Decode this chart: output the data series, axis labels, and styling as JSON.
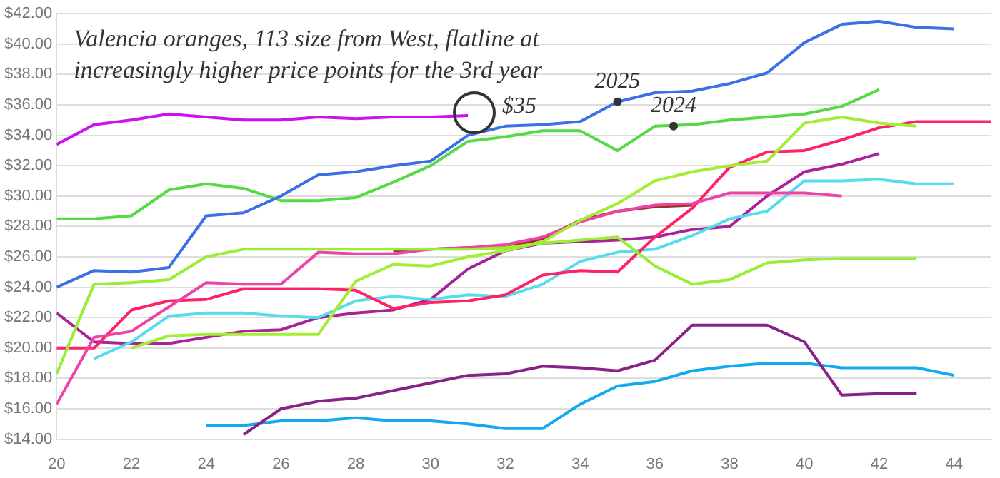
{
  "chart_data": {
    "type": "line",
    "title": "Valencia oranges, 113 size from West, flatline at increasingly higher price points for the 3rd year",
    "xlim": [
      20,
      45
    ],
    "xticks": [
      20,
      22,
      24,
      26,
      28,
      30,
      32,
      34,
      36,
      38,
      40,
      42,
      44
    ],
    "ylim": [
      14,
      42
    ],
    "yticks": [
      {
        "value": 14,
        "label": "$14.00"
      },
      {
        "value": 16,
        "label": "$16.00"
      },
      {
        "value": 18,
        "label": "$18.00"
      },
      {
        "value": 20,
        "label": "$20.00"
      },
      {
        "value": 22,
        "label": "$22.00"
      },
      {
        "value": 24,
        "label": "$24.00"
      },
      {
        "value": 26,
        "label": "$26.00"
      },
      {
        "value": 28,
        "label": "$28.00"
      },
      {
        "value": 30,
        "label": "$30.00"
      },
      {
        "value": 32,
        "label": "$32.00"
      },
      {
        "value": 34,
        "label": "$34.00"
      },
      {
        "value": 36,
        "label": "$36.00"
      },
      {
        "value": 38,
        "label": "$38.00"
      },
      {
        "value": 40,
        "label": "$40.00"
      },
      {
        "value": 42,
        "label": "$42.00"
      }
    ],
    "grid": "y",
    "legend": false,
    "series": [
      {
        "color": "#cc11ee",
        "x": [
          20,
          21,
          22,
          23,
          24,
          25,
          26,
          27,
          28,
          29,
          30,
          31
        ],
        "values": [
          33.4,
          34.7,
          35.0,
          35.4,
          35.2,
          35.0,
          35.0,
          35.2,
          35.1,
          35.2,
          35.2,
          35.3
        ]
      },
      {
        "color": "#3d6fe6",
        "x": [
          20,
          21,
          22,
          23,
          24,
          25,
          26,
          27,
          28,
          29,
          30,
          31,
          32,
          33,
          34,
          35,
          36,
          37,
          38,
          39,
          40,
          41,
          42,
          43,
          44
        ],
        "values": [
          24.0,
          25.1,
          25.0,
          25.3,
          28.7,
          28.9,
          30.0,
          31.4,
          31.6,
          32.0,
          32.3,
          34.0,
          34.6,
          34.7,
          34.9,
          36.2,
          36.8,
          36.9,
          37.4,
          38.1,
          40.1,
          41.3,
          41.5,
          41.1,
          41.0
        ]
      },
      {
        "color": "#55d944",
        "x": [
          20,
          21,
          22,
          23,
          24,
          25,
          26,
          27,
          28,
          29,
          30,
          31,
          32,
          33,
          34,
          35,
          36,
          37,
          38,
          39,
          40,
          41,
          42
        ],
        "values": [
          28.5,
          28.5,
          28.7,
          30.4,
          30.8,
          30.5,
          29.7,
          29.7,
          29.9,
          30.9,
          32.0,
          33.6,
          33.9,
          34.3,
          34.3,
          33.0,
          34.6,
          34.7,
          35.0,
          35.2,
          35.4,
          35.9,
          37.0
        ]
      },
      {
        "color": "#99ee33",
        "x": [
          20,
          21,
          22,
          23,
          24,
          25,
          26,
          27,
          28,
          29,
          30,
          31,
          32,
          33,
          34,
          35,
          36,
          37,
          38,
          39,
          40,
          41,
          42,
          43
        ],
        "values": [
          18.3,
          24.2,
          24.3,
          24.5,
          26.0,
          26.5,
          26.5,
          26.5,
          26.5,
          26.5,
          26.5,
          26.5,
          26.6,
          26.9,
          27.1,
          27.3,
          25.4,
          24.2,
          24.5,
          25.6,
          25.8,
          25.9,
          25.9,
          25.9
        ]
      },
      {
        "color": "#a3ee33",
        "x": [
          22,
          23,
          24,
          25,
          26,
          27,
          28,
          29,
          30,
          31,
          32,
          33,
          34,
          35,
          36,
          37,
          38,
          39,
          40,
          41,
          42,
          43
        ],
        "values": [
          20.0,
          20.8,
          20.9,
          20.9,
          20.9,
          20.9,
          24.4,
          25.5,
          25.4,
          26.0,
          26.4,
          27.0,
          28.4,
          29.5,
          31.0,
          31.6,
          32.0,
          32.3,
          34.8,
          35.2,
          34.8,
          34.6
        ]
      },
      {
        "color": "#ee44aa",
        "x": [
          20,
          21,
          22,
          23,
          24,
          25,
          26,
          27,
          28,
          29,
          30,
          31,
          32,
          33,
          34,
          35,
          36,
          37,
          38,
          39,
          40,
          41
        ],
        "values": [
          16.3,
          20.7,
          21.1,
          22.7,
          24.3,
          24.2,
          24.2,
          26.3,
          26.2,
          26.2,
          26.5,
          26.6,
          26.8,
          27.3,
          28.3,
          29.0,
          29.4,
          29.5,
          30.2,
          30.2,
          30.2,
          30.0
        ]
      },
      {
        "color": "#993322",
        "x": [
          29,
          30,
          31,
          32,
          33,
          34,
          35,
          36,
          37
        ],
        "values": [
          26.4,
          26.5,
          26.6,
          26.6,
          27.2,
          28.4,
          29.0,
          29.3,
          29.4
        ]
      },
      {
        "color": "#ff2266",
        "x": [
          20,
          21,
          22,
          23,
          24,
          25,
          26,
          27,
          28,
          29,
          30,
          31,
          32,
          33,
          34,
          35,
          36,
          37,
          38,
          39,
          40,
          41,
          42,
          43,
          44,
          45
        ],
        "values": [
          20.0,
          20.0,
          22.5,
          23.1,
          23.2,
          23.9,
          23.9,
          23.9,
          23.8,
          22.6,
          23.0,
          23.1,
          23.5,
          24.8,
          25.1,
          25.0,
          27.3,
          29.2,
          31.9,
          32.9,
          33.0,
          33.7,
          34.5,
          34.9,
          34.9,
          34.9
        ]
      },
      {
        "color": "#55ddee",
        "x": [
          21,
          22,
          23,
          24,
          25,
          26,
          27,
          28,
          29,
          30,
          31,
          32,
          33,
          34,
          35,
          36,
          37,
          38,
          39,
          40,
          41,
          42,
          43,
          44
        ],
        "values": [
          19.3,
          20.4,
          22.1,
          22.3,
          22.3,
          22.1,
          22.0,
          23.1,
          23.4,
          23.2,
          23.5,
          23.4,
          24.2,
          25.7,
          26.3,
          26.5,
          27.4,
          28.5,
          29.0,
          31.0,
          31.0,
          31.1,
          30.8,
          30.8
        ]
      },
      {
        "color": "#aa2299",
        "x": [
          20,
          21,
          22,
          23,
          24,
          25,
          26,
          27,
          28,
          29,
          30,
          31,
          32,
          33,
          34,
          35,
          36,
          37,
          38,
          39,
          40,
          41,
          42
        ],
        "values": [
          22.3,
          20.4,
          20.3,
          20.3,
          20.7,
          21.1,
          21.2,
          22.0,
          22.3,
          22.5,
          23.2,
          25.2,
          26.4,
          26.9,
          27.0,
          27.1,
          27.3,
          27.8,
          28.0,
          30.0,
          31.6,
          32.1,
          32.8
        ]
      },
      {
        "color": "#882288",
        "x": [
          25,
          26,
          27,
          28,
          29,
          30,
          31,
          32,
          33,
          34,
          35,
          36,
          37,
          38,
          39,
          40,
          41,
          42,
          43
        ],
        "values": [
          14.3,
          16.0,
          16.5,
          16.7,
          17.2,
          17.7,
          18.2,
          18.3,
          18.8,
          18.7,
          18.5,
          19.2,
          21.5,
          21.5,
          21.5,
          20.4,
          16.9,
          17.0,
          17.0
        ]
      },
      {
        "color": "#11aaee",
        "x": [
          24,
          25,
          26,
          27,
          28,
          29,
          30,
          31,
          32,
          33,
          34,
          35,
          36,
          37,
          38,
          39,
          40,
          41,
          42,
          43,
          44
        ],
        "values": [
          14.9,
          14.9,
          15.2,
          15.2,
          15.4,
          15.2,
          15.2,
          15.0,
          14.7,
          14.7,
          16.3,
          17.5,
          17.8,
          18.5,
          18.8,
          19.0,
          19.0,
          18.7,
          18.7,
          18.7,
          18.2
        ]
      }
    ],
    "annotations": [
      {
        "text": "$35",
        "x": 31,
        "y": 35.3
      },
      {
        "text": "2025",
        "x": 35,
        "y": 36.2
      },
      {
        "text": "2024",
        "x": 36.5,
        "y": 34.6
      }
    ]
  }
}
